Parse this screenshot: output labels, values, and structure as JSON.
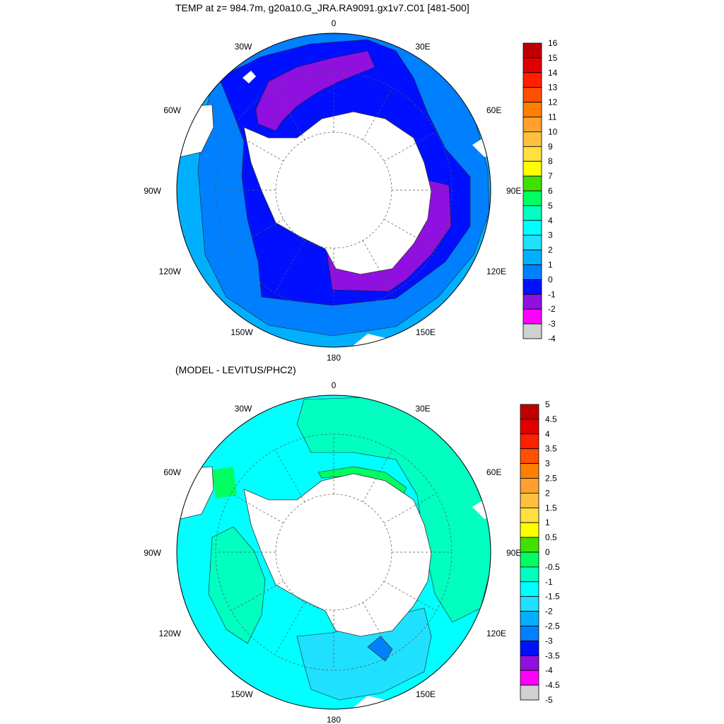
{
  "panel1": {
    "title": "TEMP at z= 984.7m, g20a10.G_JRA.RA9091.gx1v7.C01 [481-500]",
    "longitude_labels": [
      "0",
      "30E",
      "60E",
      "90E",
      "120E",
      "150E",
      "180",
      "150W",
      "120W",
      "90W",
      "60W",
      "30W"
    ],
    "colorbar": {
      "labels": [
        "16",
        "15",
        "14",
        "13",
        "12",
        "11",
        "10",
        "9",
        "8",
        "7",
        "6",
        "5",
        "4",
        "3",
        "2",
        "1",
        "0",
        "-1",
        "-2",
        "-3",
        "-4"
      ],
      "colors": [
        "#c00000",
        "#e00000",
        "#ff2000",
        "#ff5000",
        "#ff8000",
        "#ffa030",
        "#ffc040",
        "#ffe040",
        "#ffff00",
        "#40e000",
        "#00ff60",
        "#00ffc0",
        "#00ffff",
        "#20e0ff",
        "#00b0ff",
        "#0080ff",
        "#0010ff",
        "#9010e0",
        "#ff00ff",
        "#d0d0d0",
        "#707070"
      ]
    }
  },
  "panel2": {
    "title": "(MODEL - LEVITUS/PHC2)",
    "longitude_labels": [
      "0",
      "30E",
      "60E",
      "90E",
      "120E",
      "150E",
      "180",
      "150W",
      "120W",
      "90W",
      "60W",
      "30W"
    ],
    "colorbar": {
      "labels": [
        "5",
        "4.5",
        "4",
        "3.5",
        "3",
        "2.5",
        "2",
        "1.5",
        "1",
        "0.5",
        "0",
        "-0.5",
        "-1",
        "-1.5",
        "-2",
        "-2.5",
        "-3",
        "-3.5",
        "-4",
        "-4.5",
        "-5"
      ],
      "colors": [
        "#c00000",
        "#e00000",
        "#ff2000",
        "#ff5000",
        "#ff8000",
        "#ffa030",
        "#ffc040",
        "#ffe040",
        "#ffff00",
        "#40e000",
        "#00ff60",
        "#00ffc0",
        "#00ffff",
        "#20e0ff",
        "#00b0ff",
        "#0080ff",
        "#0010ff",
        "#9010e0",
        "#ff00ff",
        "#d0d0d0",
        "#707070"
      ]
    }
  }
}
